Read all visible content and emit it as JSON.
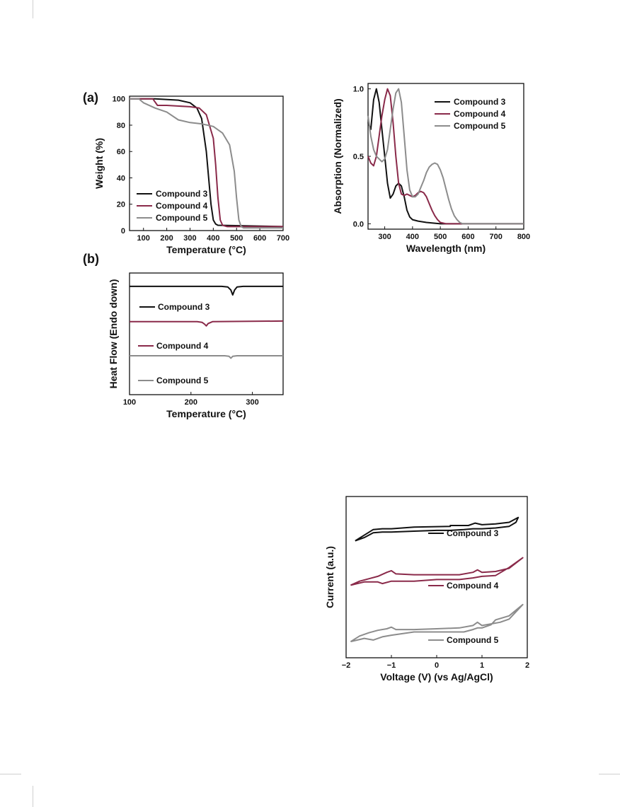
{
  "colors": {
    "compound3": "#111111",
    "compound4": "#8a2a4a",
    "compound5": "#8c8c8c"
  },
  "chart_data": [
    {
      "id": "tga",
      "type": "line",
      "panel_label": "(a)",
      "xlabel": "Temperature (°C)",
      "ylabel": "Weight (%)",
      "xlim": [
        40,
        700
      ],
      "ylim": [
        0,
        102
      ],
      "xticks": [
        100,
        200,
        300,
        400,
        500,
        600,
        700
      ],
      "yticks": [
        0,
        20,
        40,
        60,
        80,
        100
      ],
      "legend": "bottom-left",
      "series": [
        {
          "name": "Compound 3",
          "color": "#111111",
          "x": [
            40,
            150,
            250,
            300,
            330,
            350,
            370,
            380,
            390,
            400,
            410,
            420,
            700
          ],
          "y": [
            100,
            100,
            99,
            97,
            93,
            85,
            60,
            40,
            20,
            8,
            5,
            4,
            3
          ]
        },
        {
          "name": "Compound 4",
          "color": "#8a2a4a",
          "x": [
            40,
            140,
            160,
            200,
            300,
            340,
            370,
            400,
            410,
            420,
            430,
            440,
            460,
            700
          ],
          "y": [
            100,
            100,
            95,
            95,
            94,
            93,
            88,
            70,
            50,
            25,
            8,
            4,
            3,
            3
          ]
        },
        {
          "name": "Compound 5",
          "color": "#8c8c8c",
          "x": [
            40,
            80,
            100,
            150,
            200,
            250,
            300,
            350,
            400,
            440,
            470,
            490,
            500,
            510,
            520,
            530,
            700
          ],
          "y": [
            100,
            100,
            97,
            93,
            90,
            84,
            82,
            81,
            79,
            74,
            65,
            45,
            25,
            8,
            3,
            2,
            2
          ]
        }
      ]
    },
    {
      "id": "absorption",
      "type": "line",
      "panel_label": "",
      "xlabel": "Wavelength (nm)",
      "ylabel": "Absorption (Normalized)",
      "xlim": [
        240,
        800
      ],
      "ylim": [
        -0.04,
        1.04
      ],
      "xticks": [
        300,
        400,
        500,
        600,
        700,
        800
      ],
      "yticks": [
        0.0,
        0.5,
        1.0
      ],
      "ytick_labels": [
        "0.0",
        "0.5",
        "1.0"
      ],
      "legend": "top-right",
      "series": [
        {
          "name": "Compound 3",
          "color": "#111111",
          "x": [
            240,
            250,
            260,
            270,
            280,
            290,
            300,
            310,
            320,
            330,
            340,
            350,
            360,
            370,
            380,
            390,
            400,
            420,
            450,
            500,
            800
          ],
          "y": [
            0.75,
            0.7,
            0.92,
            1.0,
            0.9,
            0.7,
            0.5,
            0.3,
            0.19,
            0.22,
            0.28,
            0.3,
            0.28,
            0.2,
            0.1,
            0.05,
            0.03,
            0.02,
            0.01,
            0.0,
            0.0
          ]
        },
        {
          "name": "Compound 4",
          "color": "#8a2a4a",
          "x": [
            240,
            250,
            260,
            270,
            280,
            290,
            300,
            310,
            320,
            330,
            340,
            350,
            360,
            370,
            380,
            390,
            400,
            410,
            420,
            430,
            440,
            450,
            460,
            470,
            480,
            490,
            500,
            520,
            550,
            800
          ],
          "y": [
            0.5,
            0.45,
            0.43,
            0.5,
            0.65,
            0.8,
            0.92,
            1.0,
            0.95,
            0.75,
            0.5,
            0.3,
            0.22,
            0.21,
            0.22,
            0.21,
            0.2,
            0.21,
            0.23,
            0.24,
            0.23,
            0.2,
            0.15,
            0.1,
            0.06,
            0.03,
            0.01,
            0.0,
            0.0,
            0.0
          ]
        },
        {
          "name": "Compound 5",
          "color": "#8c8c8c",
          "x": [
            240,
            250,
            260,
            270,
            280,
            290,
            300,
            310,
            320,
            330,
            340,
            350,
            360,
            370,
            380,
            390,
            400,
            410,
            420,
            430,
            440,
            450,
            460,
            470,
            480,
            490,
            500,
            510,
            520,
            530,
            540,
            550,
            560,
            570,
            580,
            600,
            800
          ],
          "y": [
            0.8,
            0.65,
            0.55,
            0.5,
            0.48,
            0.46,
            0.48,
            0.55,
            0.7,
            0.85,
            0.97,
            1.0,
            0.9,
            0.65,
            0.4,
            0.25,
            0.2,
            0.2,
            0.22,
            0.27,
            0.32,
            0.38,
            0.42,
            0.44,
            0.45,
            0.44,
            0.4,
            0.34,
            0.26,
            0.18,
            0.11,
            0.06,
            0.03,
            0.01,
            0.0,
            0.0,
            0.0
          ]
        }
      ]
    },
    {
      "id": "dsc",
      "type": "line",
      "panel_label": "(b)",
      "xlabel": "Temperature (°C)",
      "ylabel": "Heat Flow (Endo down)",
      "xlim": [
        100,
        350
      ],
      "ylim": [
        0,
        10
      ],
      "xticks": [
        100,
        200,
        300
      ],
      "yticks": [],
      "legend": "inline",
      "series": [
        {
          "name": "Compound 3",
          "color": "#111111",
          "x": [
            100,
            250,
            260,
            265,
            268,
            271,
            275,
            285,
            350
          ],
          "y": [
            8.9,
            8.9,
            8.85,
            8.6,
            8.2,
            8.6,
            8.85,
            8.9,
            8.9
          ]
        },
        {
          "name": "Compound 4",
          "color": "#8a2a4a",
          "x": [
            100,
            210,
            218,
            222,
            225,
            228,
            235,
            350
          ],
          "y": [
            6.0,
            6.0,
            5.95,
            5.8,
            5.65,
            5.85,
            6.0,
            6.05
          ]
        },
        {
          "name": "Compound 5",
          "color": "#8c8c8c",
          "x": [
            100,
            255,
            262,
            265,
            268,
            275,
            350
          ],
          "y": [
            3.2,
            3.2,
            3.15,
            3.0,
            3.15,
            3.2,
            3.2
          ]
        }
      ]
    },
    {
      "id": "cv",
      "type": "line",
      "panel_label": "",
      "xlabel": "Voltage (V) (vs Ag/AgCl)",
      "ylabel": "Current (a.u.)",
      "xlim": [
        -2,
        2
      ],
      "ylim": [
        0,
        10
      ],
      "xticks": [
        -2,
        -1,
        0,
        1,
        2
      ],
      "xtick_labels": [
        "−2",
        "−1",
        "0",
        "1",
        "2"
      ],
      "yticks": [],
      "legend": "inline",
      "series": [
        {
          "name": "Compound 3",
          "color": "#111111",
          "x": [
            -1.8,
            -1.6,
            -1.4,
            -1.2,
            -1.0,
            -0.5,
            0.0,
            0.3,
            0.6,
            0.8,
            1.0,
            1.3,
            1.6,
            1.75,
            1.8,
            1.6,
            1.3,
            1.0,
            0.85,
            0.7,
            0.3,
            0.3,
            -0.5,
            -1.0,
            -1.2,
            -1.4,
            -1.6,
            -1.8
          ],
          "y": [
            7.25,
            7.45,
            7.75,
            7.8,
            7.8,
            7.85,
            7.9,
            7.9,
            7.95,
            8.0,
            8.0,
            8.05,
            8.15,
            8.4,
            8.7,
            8.4,
            8.3,
            8.25,
            8.35,
            8.2,
            8.2,
            8.15,
            8.1,
            8.0,
            8.0,
            7.95,
            7.6,
            7.25
          ]
        },
        {
          "name": "Compound 4",
          "color": "#8a2a4a",
          "x": [
            -1.9,
            -1.7,
            -1.5,
            -1.3,
            -1.1,
            -1.0,
            -0.9,
            -0.5,
            0.0,
            0.5,
            0.8,
            0.9,
            1.0,
            1.3,
            1.6,
            1.9,
            1.6,
            1.3,
            1.0,
            0.8,
            0.5,
            0.0,
            -0.5,
            -1.0,
            -1.2,
            -1.3,
            -1.6,
            -1.9
          ],
          "y": [
            4.5,
            4.75,
            4.9,
            5.05,
            5.3,
            5.4,
            5.2,
            5.15,
            5.15,
            5.15,
            5.3,
            5.45,
            5.3,
            5.35,
            5.55,
            6.2,
            5.6,
            5.1,
            5.05,
            4.95,
            4.85,
            4.85,
            4.75,
            4.75,
            4.6,
            4.7,
            4.7,
            4.5
          ]
        },
        {
          "name": "Compound 5",
          "color": "#8c8c8c",
          "x": [
            -1.9,
            -1.7,
            -1.5,
            -1.3,
            -1.1,
            -1.0,
            -0.9,
            -0.5,
            0.0,
            0.5,
            0.8,
            0.9,
            1.0,
            1.2,
            1.4,
            1.6,
            1.9,
            1.6,
            1.3,
            1.2,
            1.0,
            0.9,
            0.8,
            0.6,
            0.0,
            -0.5,
            -1.0,
            -1.2,
            -1.4,
            -1.6,
            -1.9
          ],
          "y": [
            1.0,
            1.35,
            1.55,
            1.7,
            1.8,
            1.9,
            1.75,
            1.75,
            1.8,
            1.85,
            2.0,
            2.2,
            2.0,
            2.1,
            2.2,
            2.4,
            3.3,
            2.6,
            2.35,
            2.05,
            1.85,
            1.85,
            1.75,
            1.6,
            1.6,
            1.6,
            1.4,
            1.3,
            1.1,
            1.2,
            1.0
          ]
        }
      ]
    }
  ]
}
